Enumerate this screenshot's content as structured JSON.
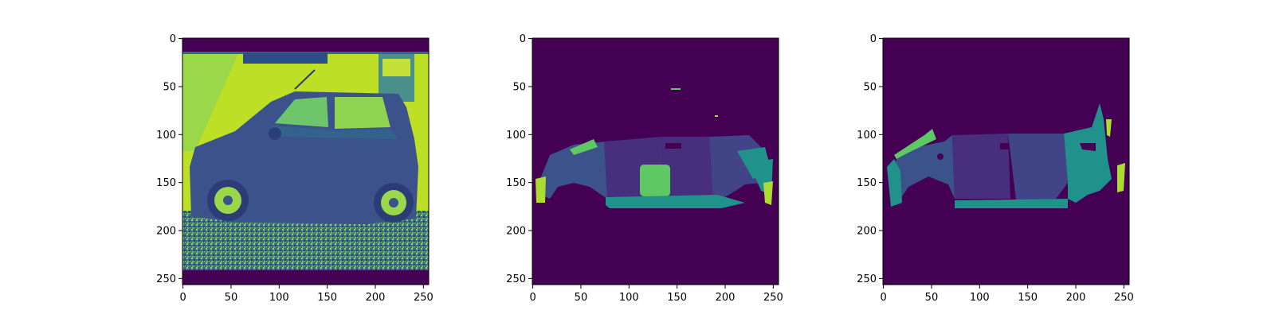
{
  "figure": {
    "panels": [
      {
        "id": "input-image",
        "x_ticks": [
          "0",
          "50",
          "100",
          "150",
          "200",
          "250"
        ],
        "y_ticks": [
          "0",
          "50",
          "100",
          "150",
          "200",
          "250"
        ]
      },
      {
        "id": "predicted-segmentation",
        "x_ticks": [
          "0",
          "50",
          "100",
          "150",
          "200",
          "250"
        ],
        "y_ticks": [
          "0",
          "50",
          "100",
          "150",
          "200",
          "250"
        ]
      },
      {
        "id": "ground-truth-segmentation",
        "x_ticks": [
          "0",
          "50",
          "100",
          "150",
          "200",
          "250"
        ],
        "y_ticks": [
          "0",
          "50",
          "100",
          "150",
          "200",
          "250"
        ]
      }
    ],
    "colors": {
      "background_class": "#440154",
      "part_dark_blue": "#3b528b",
      "part_purple": "#472f7d",
      "part_indigo": "#414487",
      "part_teal": "#21918c",
      "part_green": "#5ec962",
      "part_lime": "#addc30",
      "photo_sky": "#bddf26",
      "photo_wall": "#a8db34"
    }
  }
}
